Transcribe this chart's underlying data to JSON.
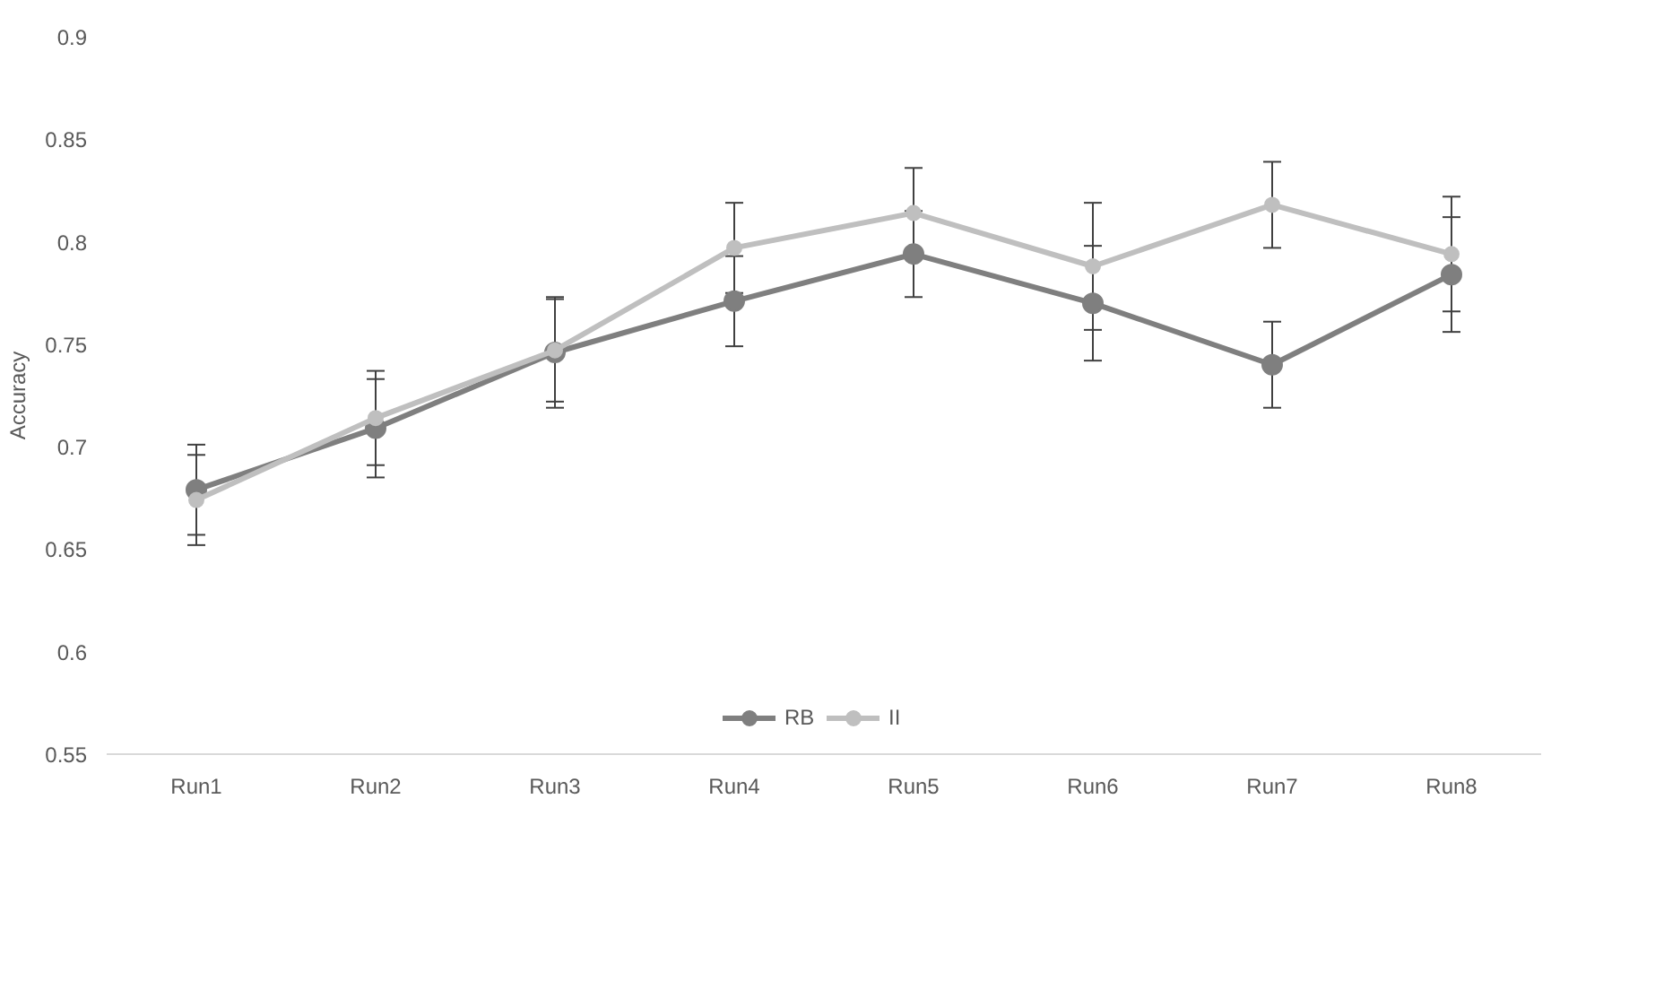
{
  "chart_data": {
    "type": "line",
    "ylabel": "Accuracy",
    "categories": [
      "Run1",
      "Run2",
      "Run3",
      "Run4",
      "Run5",
      "Run6",
      "Run7",
      "Run8"
    ],
    "series": [
      {
        "name": "RB",
        "color": "#7f7f7f",
        "values": [
          0.679,
          0.709,
          0.746,
          0.771,
          0.794,
          0.77,
          0.74,
          0.784
        ],
        "errors": [
          0.022,
          0.024,
          0.027,
          0.022,
          0.021,
          0.028,
          0.021,
          0.028
        ]
      },
      {
        "name": "II",
        "color": "#bfbfbf",
        "values": [
          0.674,
          0.714,
          0.747,
          0.797,
          0.814,
          0.788,
          0.818,
          0.794
        ],
        "errors": [
          0.022,
          0.023,
          0.025,
          0.022,
          0.022,
          0.031,
          0.021,
          0.028
        ]
      }
    ],
    "ylim": [
      0.55,
      0.9
    ],
    "yticks": [
      0.55,
      0.6,
      0.65,
      0.7,
      0.75,
      0.8,
      0.85,
      0.9
    ],
    "grid": false,
    "legend": "bottom",
    "marker": "circle",
    "line_style": "solid"
  }
}
